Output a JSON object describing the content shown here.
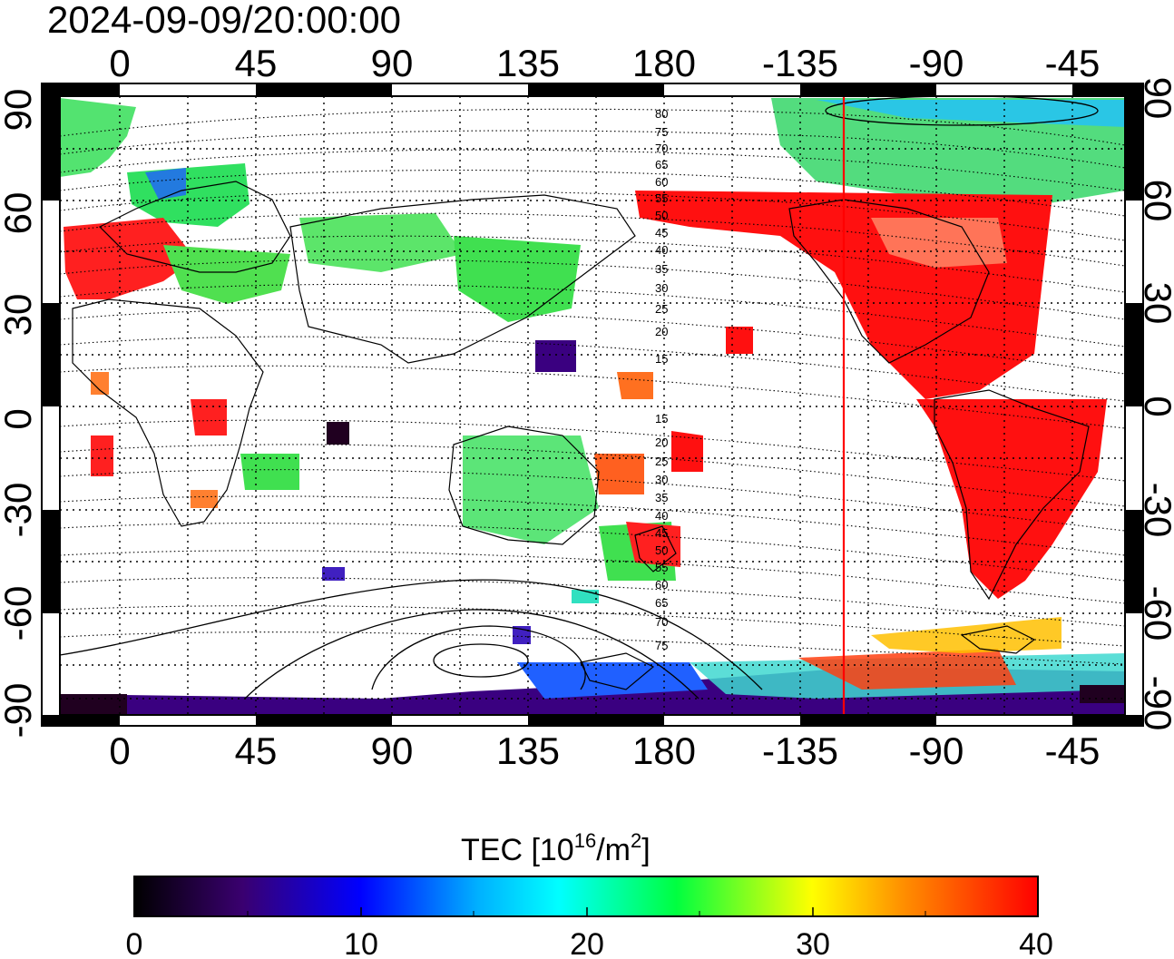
{
  "title": "2024-09-09/20:00:00",
  "map": {
    "top_lon_ticks": [
      "0",
      "45",
      "90",
      "135",
      "180",
      "-135",
      "-90",
      "-45"
    ],
    "bottom_lon_ticks": [
      "0",
      "45",
      "90",
      "135",
      "180",
      "-135",
      "-90",
      "-45"
    ],
    "left_lat_ticks": [
      "90",
      "60",
      "30",
      "0",
      "-30",
      "-60",
      "-90"
    ],
    "right_lat_ticks": [
      "90",
      "60",
      "30",
      "0",
      "-30",
      "-60",
      "-90"
    ],
    "contour_labels_north": [
      "80",
      "75",
      "70",
      "65",
      "60",
      "55",
      "50",
      "45",
      "40",
      "35",
      "30",
      "25",
      "20",
      "15"
    ],
    "contour_labels_south": [
      "15",
      "20",
      "25",
      "30",
      "35",
      "40",
      "45",
      "50",
      "55",
      "60",
      "65",
      "70",
      "75"
    ],
    "terminator_color": "#ff0000"
  },
  "colorbar": {
    "label_main": "TEC  [10",
    "label_exp1": "16",
    "label_mid": "/m",
    "label_exp2": "2",
    "label_end": "]",
    "ticks": [
      "0",
      "10",
      "20",
      "30",
      "40"
    ],
    "stops": [
      "#000000",
      "#3a0070",
      "#0000ff",
      "#00ffff",
      "#00ff00",
      "#ffff00",
      "#ff0000"
    ]
  }
}
